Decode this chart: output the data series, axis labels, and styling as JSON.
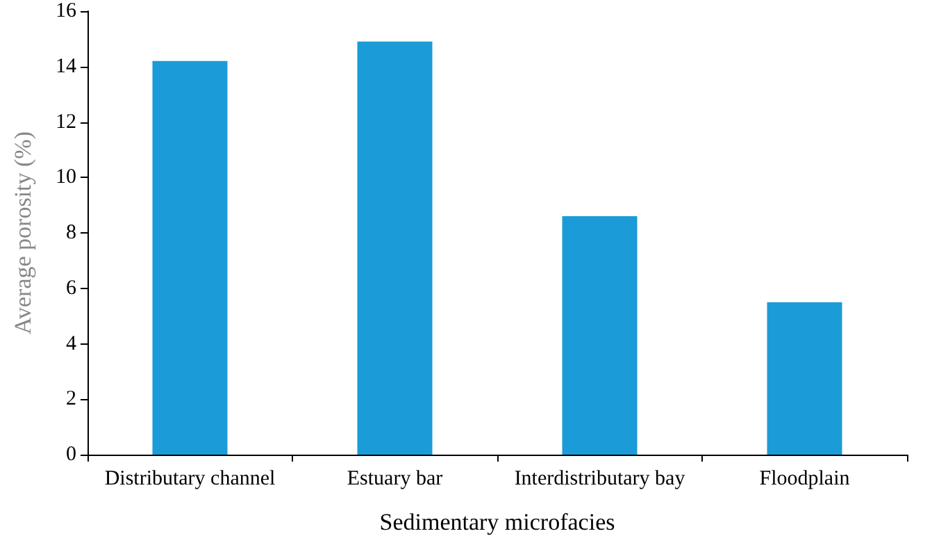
{
  "chart_data": {
    "type": "bar",
    "xlabel": "Sedimentary microfacies",
    "ylabel": "Average porosity (%)",
    "categories": [
      "Distributary channel",
      "Estuary bar",
      "Interdistributary bay",
      "Floodplain"
    ],
    "values": [
      14.2,
      14.9,
      8.6,
      5.5
    ],
    "color": "#1b9bd7",
    "ylim": [
      0,
      16
    ],
    "yticks": [
      0,
      2,
      4,
      6,
      8,
      10,
      12,
      14,
      16
    ],
    "grid": false
  }
}
